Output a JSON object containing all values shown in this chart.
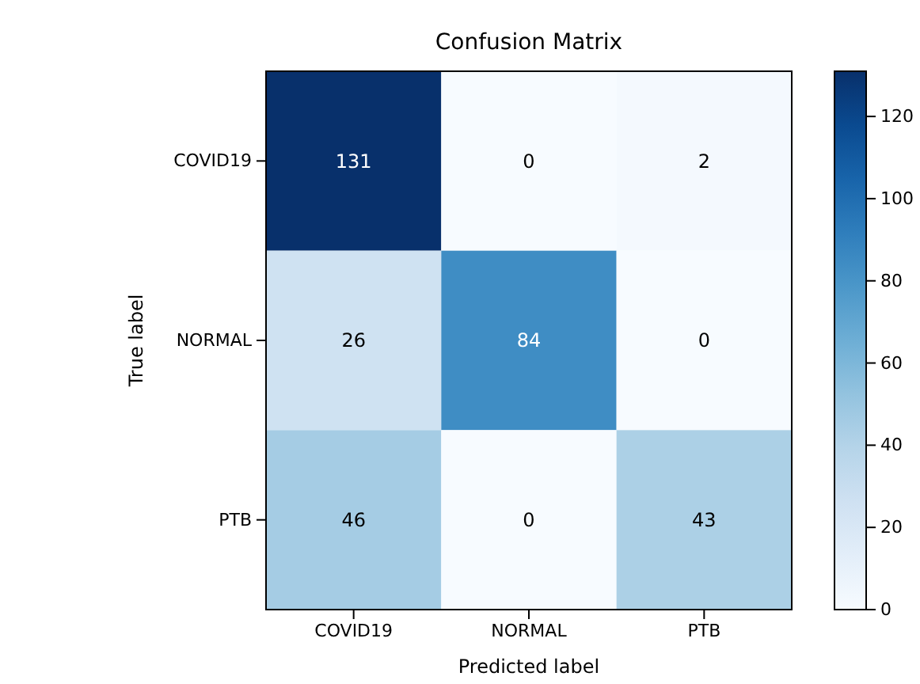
{
  "chart_data": {
    "type": "heatmap",
    "title": "Confusion Matrix",
    "xlabel": "Predicted label",
    "ylabel": "True label",
    "categories": [
      "COVID19",
      "NORMAL",
      "PTB"
    ],
    "y_categories": [
      "COVID19",
      "NORMAL",
      "PTB"
    ],
    "cells": [
      [
        131,
        0,
        2
      ],
      [
        26,
        84,
        0
      ],
      [
        46,
        0,
        43
      ]
    ],
    "clim": [
      0,
      131
    ],
    "cticks": [
      0,
      20,
      40,
      60,
      80,
      100,
      120
    ],
    "data_labels": true
  }
}
